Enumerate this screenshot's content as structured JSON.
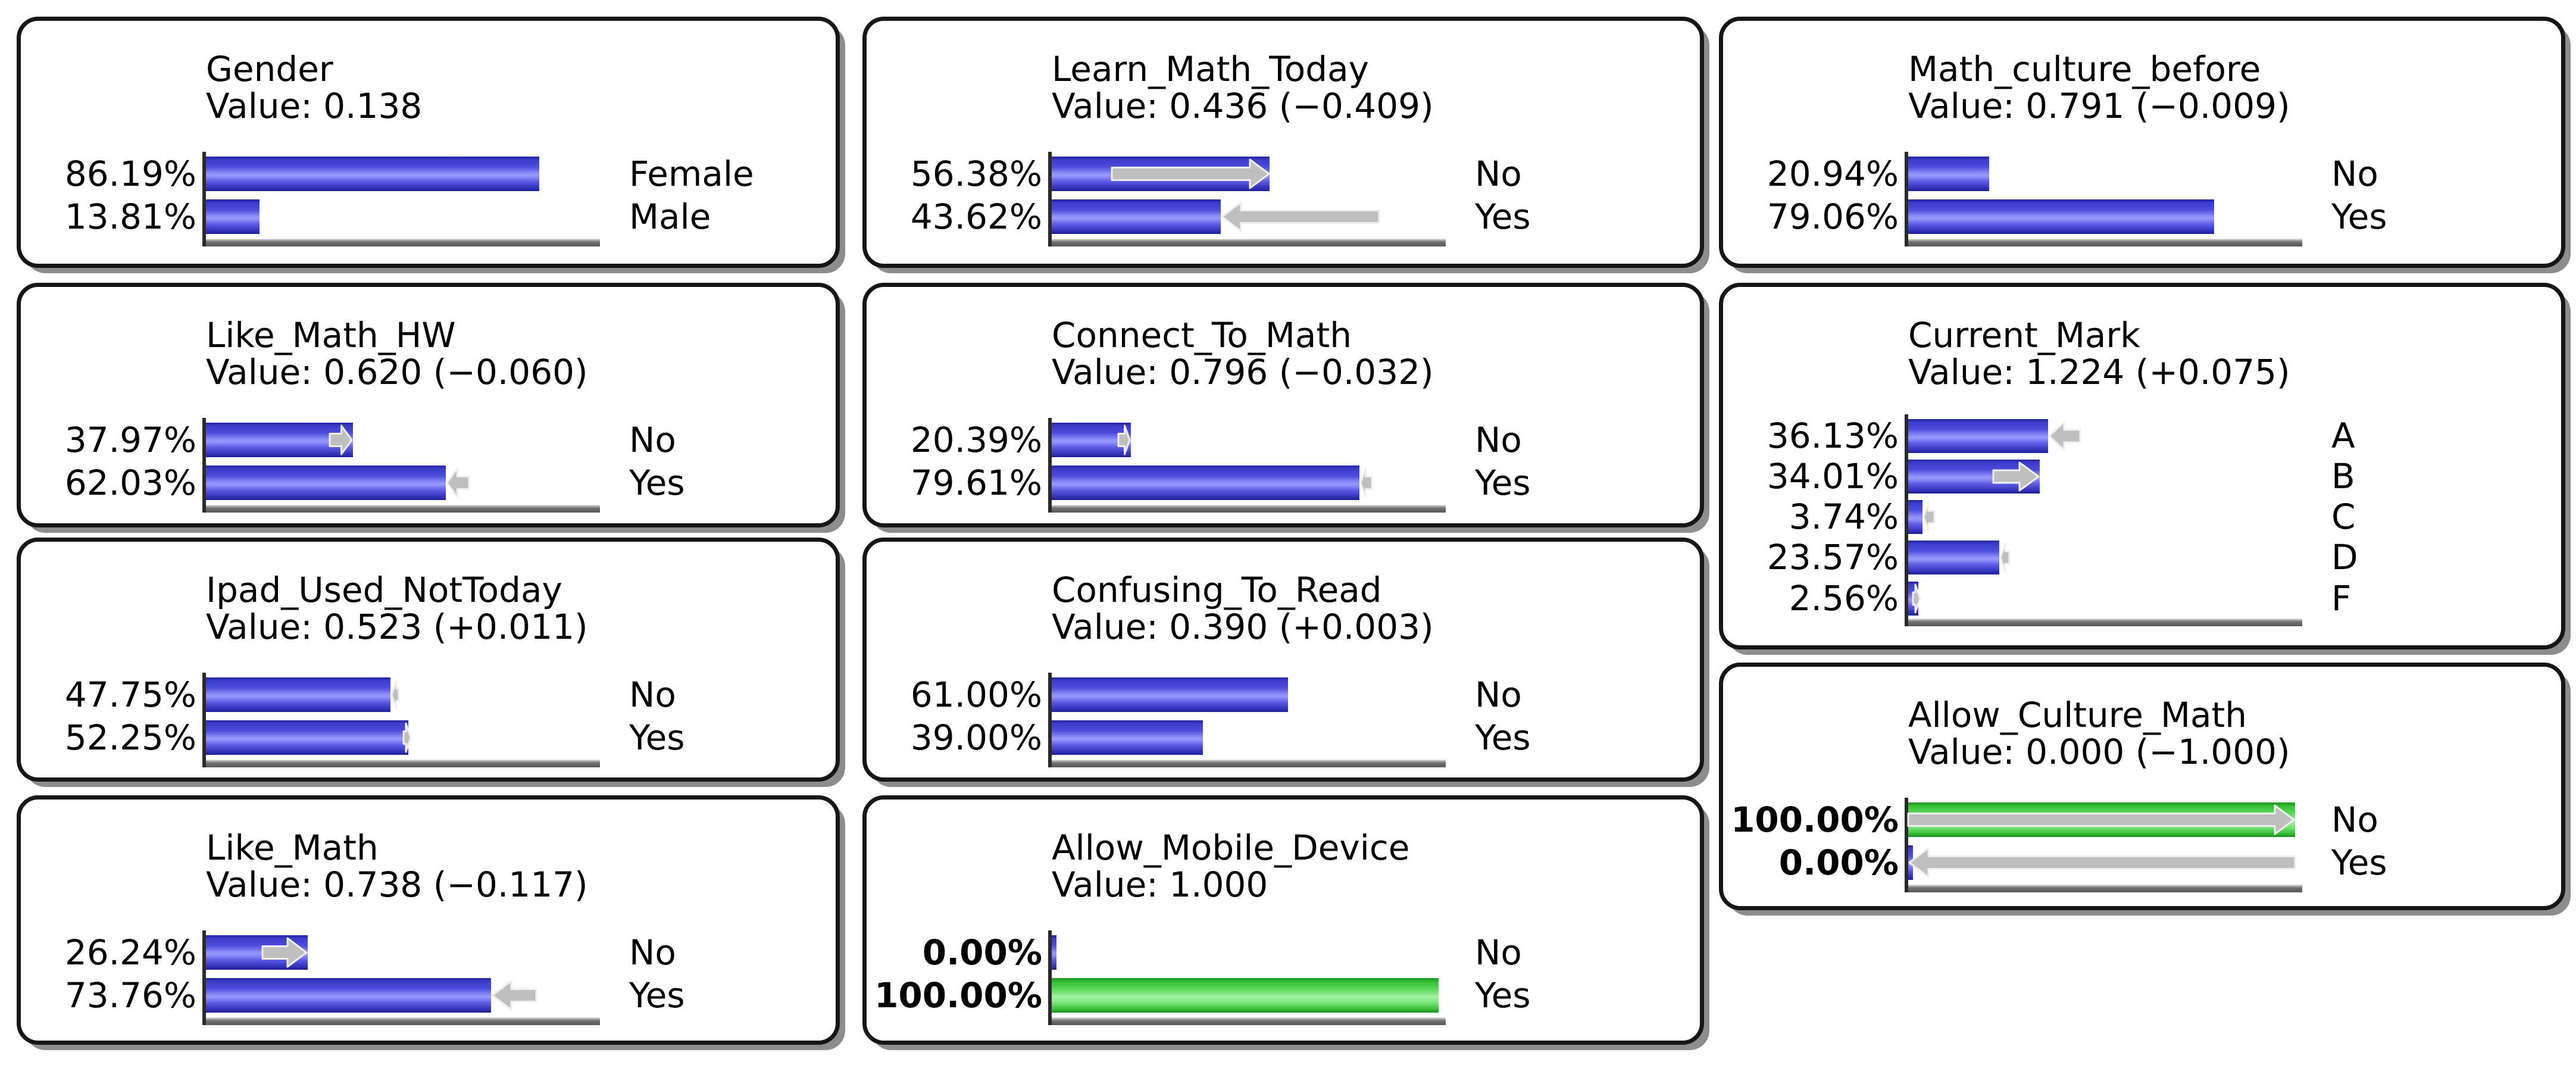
{
  "app": {
    "view_name": "bayesian-monitor-grid"
  },
  "chart_data": {
    "type": "bar",
    "orientation": "horizontal",
    "unit": "percent",
    "xlim": [
      0,
      100
    ],
    "grid": false,
    "bar_color_default": "#4c4cdd",
    "bar_color_evidence": "#62dd62",
    "arrow_color": "#bfbfbf",
    "panels": [
      {
        "id": "gender",
        "title": "Gender",
        "value_label": "Value: 0.138",
        "value": 0.138,
        "delta": null,
        "evidence": false,
        "states": [
          {
            "label": "Female",
            "pct": 86.19,
            "pct_label": "86.19%",
            "color": "blue",
            "change": null
          },
          {
            "label": "Male",
            "pct": 13.81,
            "pct_label": "13.81%",
            "color": "blue",
            "change": null
          }
        ]
      },
      {
        "id": "learn_math_today",
        "title": "Learn_Math_Today",
        "value_label": "Value: 0.436 (−0.409)",
        "value": 0.436,
        "delta": -0.409,
        "evidence": false,
        "states": [
          {
            "label": "No",
            "pct": 56.38,
            "pct_label": "56.38%",
            "color": "blue",
            "change": {
              "dir": "right",
              "from": 0.1548,
              "to": 0.5638
            }
          },
          {
            "label": "Yes",
            "pct": 43.62,
            "pct_label": "43.62%",
            "color": "blue",
            "change": {
              "dir": "left",
              "from": 0.4362,
              "to": 0.8452
            }
          }
        ]
      },
      {
        "id": "math_culture_before",
        "title": "Math_culture_before",
        "value_label": "Value: 0.791 (−0.009)",
        "value": 0.791,
        "delta": -0.009,
        "evidence": false,
        "states": [
          {
            "label": "No",
            "pct": 20.94,
            "pct_label": "20.94%",
            "color": "blue",
            "change": null
          },
          {
            "label": "Yes",
            "pct": 79.06,
            "pct_label": "79.06%",
            "color": "blue",
            "change": null
          }
        ]
      },
      {
        "id": "like_math_hw",
        "title": "Like_Math_HW",
        "value_label": "Value: 0.620 (−0.060)",
        "value": 0.62,
        "delta": -0.06,
        "evidence": false,
        "states": [
          {
            "label": "No",
            "pct": 37.97,
            "pct_label": "37.97%",
            "color": "blue",
            "change": {
              "dir": "right",
              "from": 0.3197,
              "to": 0.3797
            }
          },
          {
            "label": "Yes",
            "pct": 62.03,
            "pct_label": "62.03%",
            "color": "blue",
            "change": {
              "dir": "left",
              "from": 0.6203,
              "to": 0.6803
            }
          }
        ]
      },
      {
        "id": "connect_to_math",
        "title": "Connect_To_Math",
        "value_label": "Value: 0.796 (−0.032)",
        "value": 0.796,
        "delta": -0.032,
        "evidence": false,
        "states": [
          {
            "label": "No",
            "pct": 20.39,
            "pct_label": "20.39%",
            "color": "blue",
            "change": {
              "dir": "right",
              "from": 0.1719,
              "to": 0.2039
            }
          },
          {
            "label": "Yes",
            "pct": 79.61,
            "pct_label": "79.61%",
            "color": "blue",
            "change": {
              "dir": "left",
              "from": 0.7961,
              "to": 0.8281
            }
          }
        ]
      },
      {
        "id": "current_mark",
        "title": "Current_Mark",
        "value_label": "Value: 1.224 (+0.075)",
        "value": 1.224,
        "delta": 0.075,
        "evidence": false,
        "states": [
          {
            "label": "A",
            "pct": 36.13,
            "pct_label": "36.13%",
            "color": "blue",
            "change": {
              "dir": "left",
              "from": 0.3613,
              "to": 0.445
            }
          },
          {
            "label": "B",
            "pct": 34.01,
            "pct_label": "34.01%",
            "color": "blue",
            "change": {
              "dir": "right",
              "from": 0.22,
              "to": 0.3401
            }
          },
          {
            "label": "C",
            "pct": 3.74,
            "pct_label": "3.74%",
            "color": "blue",
            "change": {
              "dir": "left",
              "from": 0.0374,
              "to": 0.068
            }
          },
          {
            "label": "D",
            "pct": 23.57,
            "pct_label": "23.57%",
            "color": "blue",
            "change": {
              "dir": "left",
              "from": 0.2357,
              "to": 0.262
            }
          },
          {
            "label": "F",
            "pct": 2.56,
            "pct_label": "2.56%",
            "color": "blue",
            "change": {
              "dir": "right",
              "from": 0.012,
              "to": 0.0256
            }
          }
        ]
      },
      {
        "id": "ipad_used_nottoday",
        "title": "Ipad_Used_NotToday",
        "value_label": "Value: 0.523 (+0.011)",
        "value": 0.523,
        "delta": 0.011,
        "evidence": false,
        "states": [
          {
            "label": "No",
            "pct": 47.75,
            "pct_label": "47.75%",
            "color": "blue",
            "change": {
              "dir": "left",
              "from": 0.4775,
              "to": 0.4885
            }
          },
          {
            "label": "Yes",
            "pct": 52.25,
            "pct_label": "52.25%",
            "color": "blue",
            "change": {
              "dir": "right",
              "from": 0.5115,
              "to": 0.5225
            }
          }
        ]
      },
      {
        "id": "confusing_to_read",
        "title": "Confusing_To_Read",
        "value_label": "Value: 0.390 (+0.003)",
        "value": 0.39,
        "delta": 0.003,
        "evidence": false,
        "states": [
          {
            "label": "No",
            "pct": 61.0,
            "pct_label": "61.00%",
            "color": "blue",
            "change": null
          },
          {
            "label": "Yes",
            "pct": 39.0,
            "pct_label": "39.00%",
            "color": "blue",
            "change": null
          }
        ]
      },
      {
        "id": "like_math",
        "title": "Like_Math",
        "value_label": "Value: 0.738 (−0.117)",
        "value": 0.738,
        "delta": -0.117,
        "evidence": false,
        "states": [
          {
            "label": "No",
            "pct": 26.24,
            "pct_label": "26.24%",
            "color": "blue",
            "change": {
              "dir": "right",
              "from": 0.1454,
              "to": 0.2624
            }
          },
          {
            "label": "Yes",
            "pct": 73.76,
            "pct_label": "73.76%",
            "color": "blue",
            "change": {
              "dir": "left",
              "from": 0.7376,
              "to": 0.8546
            }
          }
        ]
      },
      {
        "id": "allow_mobile_device",
        "title": "Allow_Mobile_Device",
        "value_label": "Value: 1.000",
        "value": 1.0,
        "delta": null,
        "evidence": true,
        "states": [
          {
            "label": "No",
            "pct": 0.0,
            "pct_label": "0.00%",
            "color": "blue",
            "change": null
          },
          {
            "label": "Yes",
            "pct": 100.0,
            "pct_label": "100.00%",
            "color": "green",
            "change": null
          }
        ]
      },
      {
        "id": "allow_culture_math",
        "title": "Allow_Culture_Math",
        "value_label": "Value: 0.000 (−1.000)",
        "value": 0.0,
        "delta": -1.0,
        "evidence": true,
        "states": [
          {
            "label": "No",
            "pct": 100.0,
            "pct_label": "100.00%",
            "color": "green",
            "change": {
              "dir": "right",
              "from": 0.0,
              "to": 1.0
            }
          },
          {
            "label": "Yes",
            "pct": 0.0,
            "pct_label": "0.00%",
            "color": "blue",
            "change": {
              "dir": "left",
              "from": 0.0,
              "to": 1.0
            }
          }
        ]
      }
    ]
  }
}
